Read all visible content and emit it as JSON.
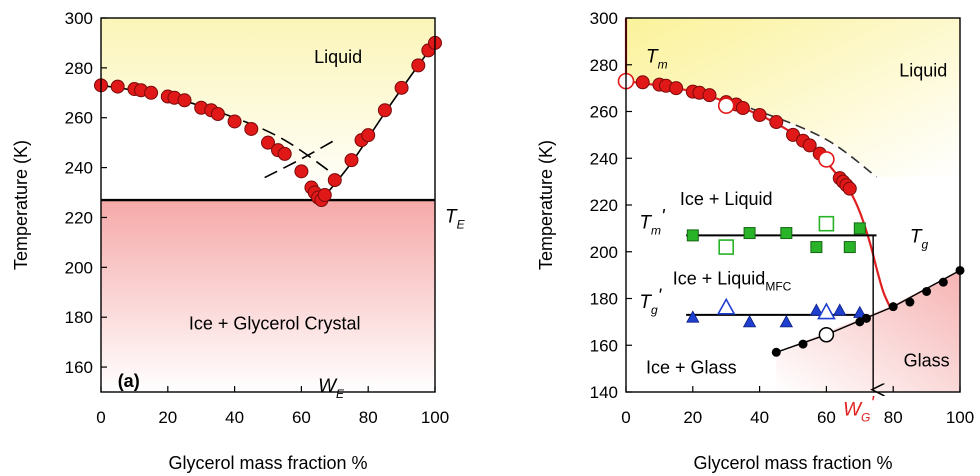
{
  "colors": {
    "liquid_fill": "#fbf6c4",
    "solid_fill": "#f7b3b3",
    "red_point": "#e01818",
    "green_point": "#29b329",
    "blue_point": "#1f3fcf",
    "black_point": "#000000",
    "red_line": "#e02020"
  },
  "chart_data": [
    {
      "type": "scatter",
      "panel_label": "(a)",
      "xlabel": "Glycerol mass fraction %",
      "ylabel": "Temperature (K)",
      "xlim": [
        0,
        100
      ],
      "ylim": [
        150,
        300
      ],
      "xticks": [
        "0",
        "20",
        "40",
        "60",
        "80",
        "100"
      ],
      "yticks": [
        "160",
        "180",
        "200",
        "220",
        "240",
        "260",
        "280",
        "300"
      ],
      "region_labels": {
        "liquid": "Liquid",
        "solid": "Ice + Glycerol Crystal"
      },
      "te_label": {
        "main": "T",
        "sub": "E"
      },
      "we_label": {
        "main": "W",
        "sub": "E"
      },
      "eutectic_T": 227,
      "series": [
        {
          "marker": "filled-circle-red",
          "points": [
            [
              0,
              273
            ],
            [
              5,
              272.5
            ],
            [
              10,
              271.5
            ],
            [
              12,
              271
            ],
            [
              15,
              270
            ],
            [
              20,
              268.5
            ],
            [
              22,
              268
            ],
            [
              25,
              267
            ],
            [
              30,
              264
            ],
            [
              33,
              263
            ],
            [
              35,
              261.5
            ],
            [
              40,
              258.5
            ],
            [
              45,
              255.5
            ],
            [
              50,
              250
            ],
            [
              53,
              247
            ],
            [
              55,
              245.5
            ],
            [
              60,
              238.5
            ],
            [
              63,
              232
            ],
            [
              64,
              230
            ],
            [
              65,
              228
            ],
            [
              66,
              227
            ],
            [
              67,
              229
            ],
            [
              70,
              235
            ],
            [
              75,
              243
            ],
            [
              78,
              251
            ],
            [
              80,
              253
            ],
            [
              85,
              263
            ],
            [
              90,
              272
            ],
            [
              95,
              281
            ],
            [
              98,
              287
            ],
            [
              100,
              290
            ]
          ]
        }
      ],
      "lines": {
        "ice_liquidus_dashed": [
          [
            0,
            273
          ],
          [
            20,
            268.5
          ],
          [
            40,
            260
          ],
          [
            55,
            251
          ],
          [
            70,
            237
          ]
        ],
        "glycerol_liquidus_dashed": [
          [
            49,
            236
          ],
          [
            60,
            243.5
          ],
          [
            70,
            251
          ]
        ],
        "glycerol_liquidus_solid": [
          [
            66,
            227
          ],
          [
            75,
            242
          ],
          [
            85,
            262
          ],
          [
            95,
            281
          ],
          [
            100,
            290
          ]
        ]
      }
    },
    {
      "type": "scatter",
      "xlabel": "Glycerol mass fraction %",
      "ylabel": "Temperature (K)",
      "xlim": [
        0,
        100
      ],
      "ylim": [
        140,
        300
      ],
      "xticks": [
        "0",
        "20",
        "40",
        "60",
        "80",
        "100"
      ],
      "yticks": [
        "140",
        "160",
        "180",
        "200",
        "220",
        "240",
        "260",
        "280",
        "300"
      ],
      "region_labels": {
        "liquid": "Liquid",
        "ice_liquid": "Ice + Liquid",
        "ice_liquid_mfc": {
          "main": "Ice + Liquid",
          "sub": "MFC"
        },
        "ice_glass": "Ice + Glass",
        "glass": "Glass"
      },
      "tm_label": {
        "main": "T",
        "sub": "m"
      },
      "tm_prime_label": {
        "main": "T",
        "sub": "m",
        "prime": "'"
      },
      "tg_label": {
        "main": "T",
        "sub": "g"
      },
      "tg_prime_label": {
        "main": "T",
        "sub": "g",
        "prime": "'"
      },
      "wg_label": {
        "main": "W",
        "sub": "G",
        "prime": "'"
      },
      "tm_prime_T": 207,
      "tg_prime_T": 173,
      "wg_prime_x": 74,
      "series": [
        {
          "marker": "filled-circle-red",
          "points": [
            [
              0,
              273
            ],
            [
              5,
              272.5
            ],
            [
              10,
              271.5
            ],
            [
              12,
              271
            ],
            [
              15,
              270
            ],
            [
              20,
              268.5
            ],
            [
              22,
              268
            ],
            [
              25,
              267
            ],
            [
              30,
              264
            ],
            [
              33,
              263
            ],
            [
              35,
              261.5
            ],
            [
              40,
              258.5
            ],
            [
              45,
              255.5
            ],
            [
              50,
              250
            ],
            [
              53,
              247.5
            ],
            [
              55,
              245.5
            ],
            [
              58,
              242
            ],
            [
              64,
              231.5
            ],
            [
              65,
              230
            ],
            [
              66,
              228.5
            ],
            [
              67,
              227
            ]
          ]
        },
        {
          "marker": "open-circle-red",
          "points": [
            [
              0,
              273
            ],
            [
              30,
              262.5
            ],
            [
              60,
              239.5
            ]
          ]
        },
        {
          "marker": "filled-square-green",
          "points": [
            [
              20,
              207
            ],
            [
              37,
              208
            ],
            [
              48,
              208
            ],
            [
              57,
              202
            ],
            [
              67,
              202
            ],
            [
              70,
              210
            ]
          ]
        },
        {
          "marker": "open-square-green",
          "points": [
            [
              30,
              202
            ],
            [
              60,
              212
            ]
          ]
        },
        {
          "marker": "filled-triangle-blue",
          "points": [
            [
              20,
              172
            ],
            [
              37,
              170
            ],
            [
              48,
              170
            ],
            [
              57,
              175
            ],
            [
              64,
              175
            ],
            [
              70,
              174
            ]
          ]
        },
        {
          "marker": "open-triangle-blue",
          "points": [
            [
              30,
              176
            ],
            [
              60,
              174
            ]
          ]
        },
        {
          "marker": "filled-circle-black",
          "points": [
            [
              45,
              157
            ],
            [
              53,
              160.5
            ],
            [
              70,
              170
            ],
            [
              72,
              171.5
            ],
            [
              80,
              176.5
            ],
            [
              85,
              178.5
            ],
            [
              90,
              183
            ],
            [
              95,
              187
            ],
            [
              100,
              192
            ]
          ]
        },
        {
          "marker": "open-circle-black",
          "points": [
            [
              60,
              164.5
            ]
          ]
        }
      ],
      "lines": {
        "ice_liquidus_dashed": [
          [
            0,
            273
          ],
          [
            20,
            268.5
          ],
          [
            40,
            260
          ],
          [
            60,
            248
          ],
          [
            75,
            232
          ]
        ],
        "red_liquidus": [
          [
            0,
            300
          ],
          [
            0,
            273
          ],
          [
            20,
            268.5
          ],
          [
            40,
            258.5
          ],
          [
            55,
            245.5
          ],
          [
            64,
            231.5
          ],
          [
            67,
            226
          ],
          [
            70,
            217
          ],
          [
            73,
            204
          ],
          [
            75,
            193
          ],
          [
            77,
            183
          ],
          [
            79,
            176.5
          ]
        ],
        "tg_glass_line": [
          [
            45,
            157
          ],
          [
            60,
            164.5
          ],
          [
            80,
            176.5
          ],
          [
            100,
            192
          ]
        ],
        "tm_prime_line": [
          [
            18,
            207
          ],
          [
            75,
            207
          ]
        ],
        "tg_prime_line": [
          [
            18,
            173
          ],
          [
            72,
            173
          ]
        ],
        "wg_arrow_x": 74
      }
    }
  ]
}
